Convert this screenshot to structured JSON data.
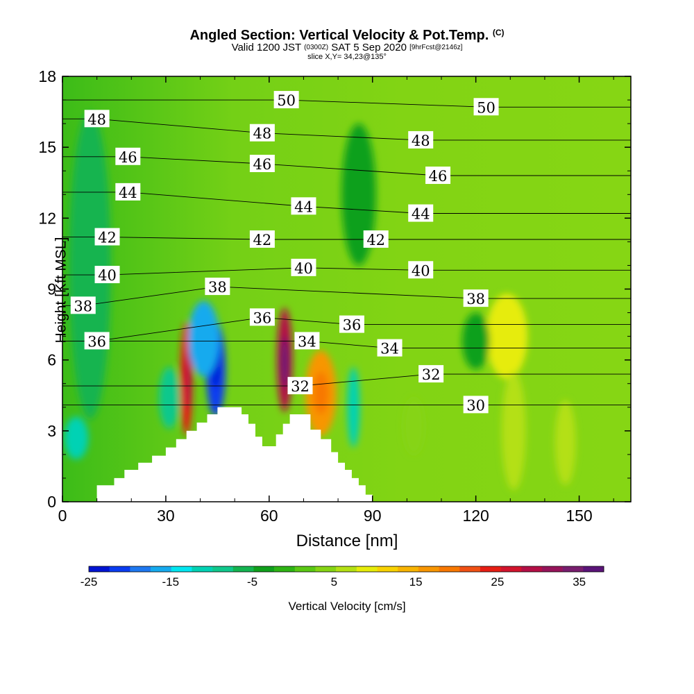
{
  "header": {
    "title": "Angled Section: Vertical Velocity & Pot.Temp.",
    "title_tag": "(C)",
    "valid_a": "Valid 1200 JST",
    "valid_b": "(0300Z)",
    "valid_c": "SAT 5 Sep 2020",
    "valid_d": "[9hrFcst@2146z]",
    "slice": "slice X,Y= 34,23@135°"
  },
  "chart_data": {
    "type": "heatmap",
    "xlabel": "Distance [nm]",
    "ylabel": "Height [Kft MSL]",
    "xlim": [
      0,
      165
    ],
    "ylim": [
      0,
      18
    ],
    "x_ticks": [
      0,
      30,
      60,
      90,
      120,
      150
    ],
    "y_ticks": [
      0,
      3,
      6,
      9,
      12,
      15,
      18
    ],
    "colorbar": {
      "label": "Vertical Velocity [cm/s]",
      "range": [
        -25,
        38
      ],
      "tick_values": [
        -25,
        -15,
        -5,
        5,
        15,
        25,
        35
      ],
      "tick_labels": [
        "-25",
        "-15",
        "-5",
        "5",
        "15",
        "25",
        "35"
      ],
      "colors": [
        "#0014d2",
        "#0a3cf0",
        "#1e78f0",
        "#16aaee",
        "#00e6f0",
        "#00d2b4",
        "#10c88c",
        "#14b450",
        "#10a01c",
        "#2eb414",
        "#5ac814",
        "#86d414",
        "#b4e014",
        "#e6ec0a",
        "#f8d200",
        "#f8b400",
        "#f89600",
        "#f87800",
        "#f05014",
        "#e61e14",
        "#d2142d",
        "#b40f46",
        "#96145a",
        "#781e6e",
        "#5a1478"
      ]
    },
    "terrain": [
      [
        0,
        0
      ],
      [
        10,
        0
      ],
      [
        10,
        0.7
      ],
      [
        15,
        0.7
      ],
      [
        15,
        1.0
      ],
      [
        18,
        1.0
      ],
      [
        18,
        1.35
      ],
      [
        22,
        1.35
      ],
      [
        22,
        1.65
      ],
      [
        26,
        1.65
      ],
      [
        26,
        1.95
      ],
      [
        30,
        1.95
      ],
      [
        30,
        2.3
      ],
      [
        33,
        2.3
      ],
      [
        33,
        2.65
      ],
      [
        36,
        2.65
      ],
      [
        36,
        3.0
      ],
      [
        39,
        3.0
      ],
      [
        39,
        3.35
      ],
      [
        42,
        3.35
      ],
      [
        42,
        3.7
      ],
      [
        45,
        3.7
      ],
      [
        45,
        4.0
      ],
      [
        52,
        4.0
      ],
      [
        52,
        3.7
      ],
      [
        54,
        3.7
      ],
      [
        54,
        3.3
      ],
      [
        56,
        3.3
      ],
      [
        56,
        2.75
      ],
      [
        58,
        2.75
      ],
      [
        58,
        2.35
      ],
      [
        62,
        2.35
      ],
      [
        62,
        2.85
      ],
      [
        64,
        2.85
      ],
      [
        64,
        3.3
      ],
      [
        66,
        3.3
      ],
      [
        66,
        3.7
      ],
      [
        72,
        3.7
      ],
      [
        72,
        3.05
      ],
      [
        75,
        3.05
      ],
      [
        75,
        2.65
      ],
      [
        78,
        2.65
      ],
      [
        78,
        2.1
      ],
      [
        80,
        2.1
      ],
      [
        80,
        1.65
      ],
      [
        82,
        1.65
      ],
      [
        82,
        1.35
      ],
      [
        84,
        1.35
      ],
      [
        84,
        1.0
      ],
      [
        86,
        1.0
      ],
      [
        86,
        0.7
      ],
      [
        88,
        0.7
      ],
      [
        88,
        0.3
      ],
      [
        90,
        0.3
      ],
      [
        90,
        0
      ],
      [
        165,
        0
      ]
    ],
    "theta_labels": [
      {
        "value": "50",
        "x": 65,
        "y": 17.0
      },
      {
        "value": "50",
        "x": 123,
        "y": 16.7
      },
      {
        "value": "48",
        "x": 10,
        "y": 16.2
      },
      {
        "value": "48",
        "x": 58,
        "y": 15.6
      },
      {
        "value": "48",
        "x": 104,
        "y": 15.3
      },
      {
        "value": "46",
        "x": 19,
        "y": 14.6
      },
      {
        "value": "46",
        "x": 58,
        "y": 14.3
      },
      {
        "value": "46",
        "x": 109,
        "y": 13.8
      },
      {
        "value": "44",
        "x": 19,
        "y": 13.1
      },
      {
        "value": "44",
        "x": 70,
        "y": 12.5
      },
      {
        "value": "44",
        "x": 104,
        "y": 12.2
      },
      {
        "value": "42",
        "x": 13,
        "y": 11.2
      },
      {
        "value": "42",
        "x": 58,
        "y": 11.1
      },
      {
        "value": "42",
        "x": 91,
        "y": 11.1
      },
      {
        "value": "40",
        "x": 13,
        "y": 9.6
      },
      {
        "value": "40",
        "x": 70,
        "y": 9.9
      },
      {
        "value": "40",
        "x": 104,
        "y": 9.8
      },
      {
        "value": "38",
        "x": 6,
        "y": 8.3
      },
      {
        "value": "38",
        "x": 45,
        "y": 9.1
      },
      {
        "value": "38",
        "x": 120,
        "y": 8.6
      },
      {
        "value": "36",
        "x": 10,
        "y": 6.8
      },
      {
        "value": "36",
        "x": 58,
        "y": 7.8
      },
      {
        "value": "36",
        "x": 84,
        "y": 7.5
      },
      {
        "value": "34",
        "x": 71,
        "y": 6.8
      },
      {
        "value": "34",
        "x": 95,
        "y": 6.5
      },
      {
        "value": "32",
        "x": 69,
        "y": 4.9
      },
      {
        "value": "32",
        "x": 107,
        "y": 5.4
      },
      {
        "value": "30",
        "x": 120,
        "y": 4.1
      }
    ],
    "velocity_cells": [
      {
        "x": 36,
        "y": 5.2,
        "w": 1.8,
        "h": 2.4,
        "v": 25
      },
      {
        "x": 36.5,
        "y": 5.2,
        "w": 0.8,
        "h": 1.3,
        "v": 29
      },
      {
        "x": 44.5,
        "y": 5.6,
        "w": 2.8,
        "h": 2.0,
        "v": -20
      },
      {
        "x": 44.5,
        "y": 5.8,
        "w": 1.2,
        "h": 1.0,
        "v": -24
      },
      {
        "x": 41,
        "y": 6.9,
        "w": 4.5,
        "h": 1.6,
        "v": -15
      },
      {
        "x": 64.5,
        "y": 6.0,
        "w": 2.2,
        "h": 2.2,
        "v": 28
      },
      {
        "x": 64.5,
        "y": 5.9,
        "w": 1.0,
        "h": 1.1,
        "v": 36
      },
      {
        "x": 75,
        "y": 4.6,
        "w": 4.5,
        "h": 1.8,
        "v": 16
      },
      {
        "x": 75,
        "y": 4.6,
        "w": 2.2,
        "h": 0.9,
        "v": 20
      },
      {
        "x": 84.5,
        "y": 4.0,
        "w": 1.8,
        "h": 1.7,
        "v": -12
      },
      {
        "x": 4,
        "y": 2.7,
        "w": 3.5,
        "h": 0.9,
        "v": -12
      },
      {
        "x": 31,
        "y": 4.4,
        "w": 3.0,
        "h": 1.3,
        "v": -8
      },
      {
        "x": 129,
        "y": 7.0,
        "w": 6.0,
        "h": 1.8,
        "v": 8
      },
      {
        "x": 131,
        "y": 3.0,
        "w": 3.5,
        "h": 2.5,
        "v": 7
      },
      {
        "x": 146,
        "y": 2.5,
        "w": 3.0,
        "h": 1.8,
        "v": 6
      },
      {
        "x": 102,
        "y": 3.2,
        "w": 3.0,
        "h": 1.2,
        "v": 5
      },
      {
        "x": 120,
        "y": 6.8,
        "w": 4.0,
        "h": 1.2,
        "v": -4
      },
      {
        "x": 8,
        "y": 10,
        "w": 6,
        "h": 6.5,
        "v": -5
      },
      {
        "x": 86,
        "y": 13,
        "w": 5,
        "h": 3.0,
        "v": -3
      }
    ]
  }
}
